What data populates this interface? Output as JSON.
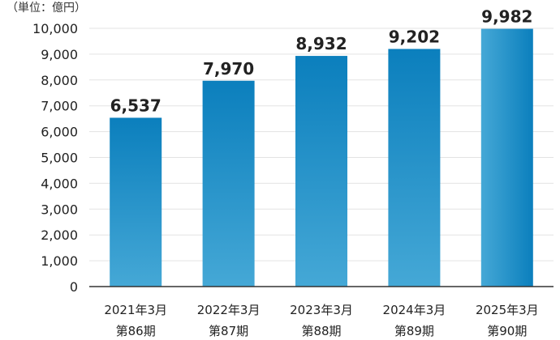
{
  "chart_data": {
    "type": "bar",
    "unit_label": "（単位：億円）",
    "categories": [
      {
        "line1": "2021年3月",
        "line2": "第86期"
      },
      {
        "line1": "2022年3月",
        "line2": "第87期"
      },
      {
        "line1": "2023年3月",
        "line2": "第88期"
      },
      {
        "line1": "2024年3月",
        "line2": "第89期"
      },
      {
        "line1": "2025年3月",
        "line2": "第90期"
      }
    ],
    "values": [
      6537,
      7970,
      8932,
      9202,
      9982
    ],
    "value_labels": [
      "6,537",
      "7,970",
      "8,932",
      "9,202",
      "9,982"
    ],
    "ylim": [
      0,
      10000
    ],
    "yticks": [
      0,
      1000,
      2000,
      3000,
      4000,
      5000,
      6000,
      7000,
      8000,
      9000,
      10000
    ],
    "ytick_labels": [
      "0",
      "1,000",
      "2,000",
      "3,000",
      "4,000",
      "5,000",
      "6,000",
      "7,000",
      "8,000",
      "9,000",
      "10,000"
    ],
    "grid": true,
    "highlight_index": 4,
    "colors": {
      "bar_top": "#0b7fbd",
      "bar_bottom": "#45a8d6",
      "highlight_left": "#45a8d6",
      "highlight_right": "#0b7fbd",
      "grid": "#e3e3e3",
      "axis": "#333333"
    }
  }
}
